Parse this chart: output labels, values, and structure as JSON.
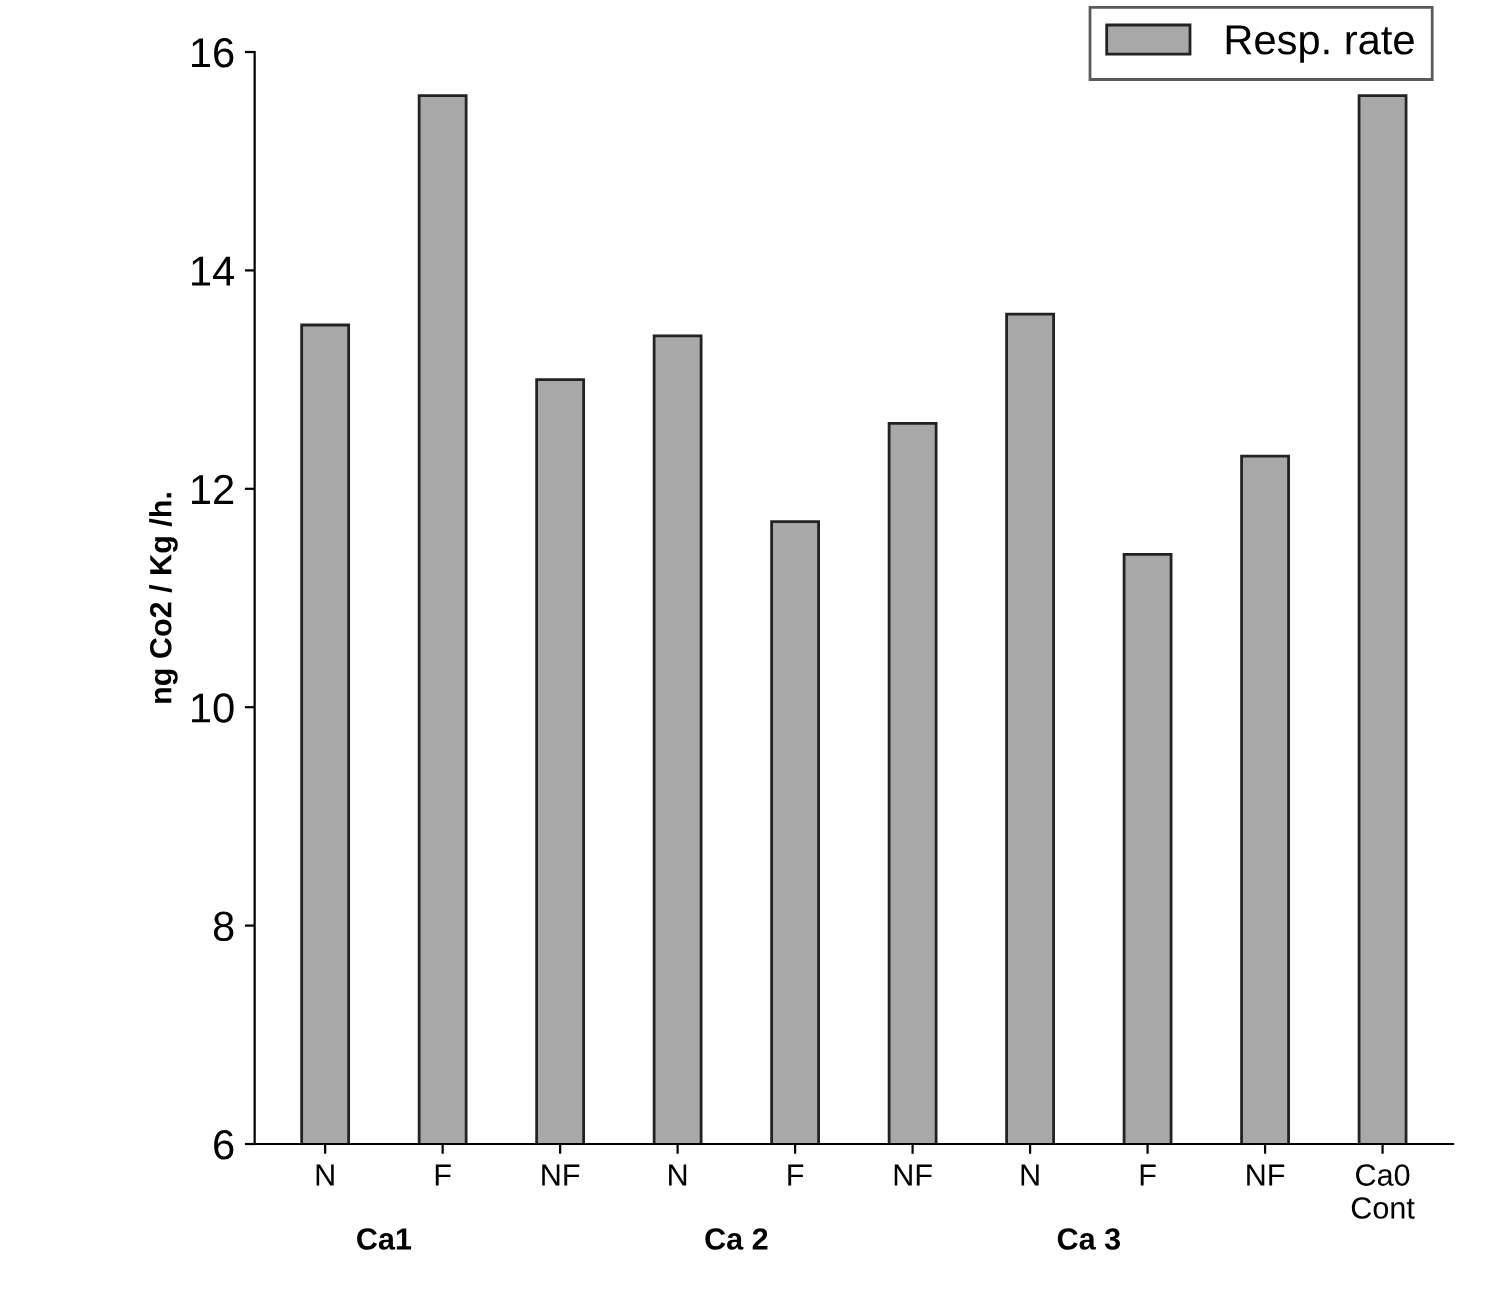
{
  "chart_data": {
    "type": "bar",
    "ylabel": "ng Co2 / Kg /h.",
    "categories": [
      "N",
      "F",
      "NF",
      "N",
      "F",
      "NF",
      "N",
      "F",
      "NF",
      "Ca0\nCont"
    ],
    "series": [
      {
        "name": "Resp. rate",
        "color": "#a8a8a8",
        "values": [
          13.5,
          15.6,
          13.0,
          13.4,
          11.7,
          12.6,
          13.6,
          11.4,
          12.3,
          15.6
        ]
      }
    ],
    "ylim": [
      6,
      16
    ],
    "yticks": [
      6,
      8,
      10,
      12,
      14,
      16
    ],
    "grid": false,
    "legend": "top right",
    "annotations": [
      "Ca1",
      "Ca 2",
      "Ca 3"
    ]
  }
}
